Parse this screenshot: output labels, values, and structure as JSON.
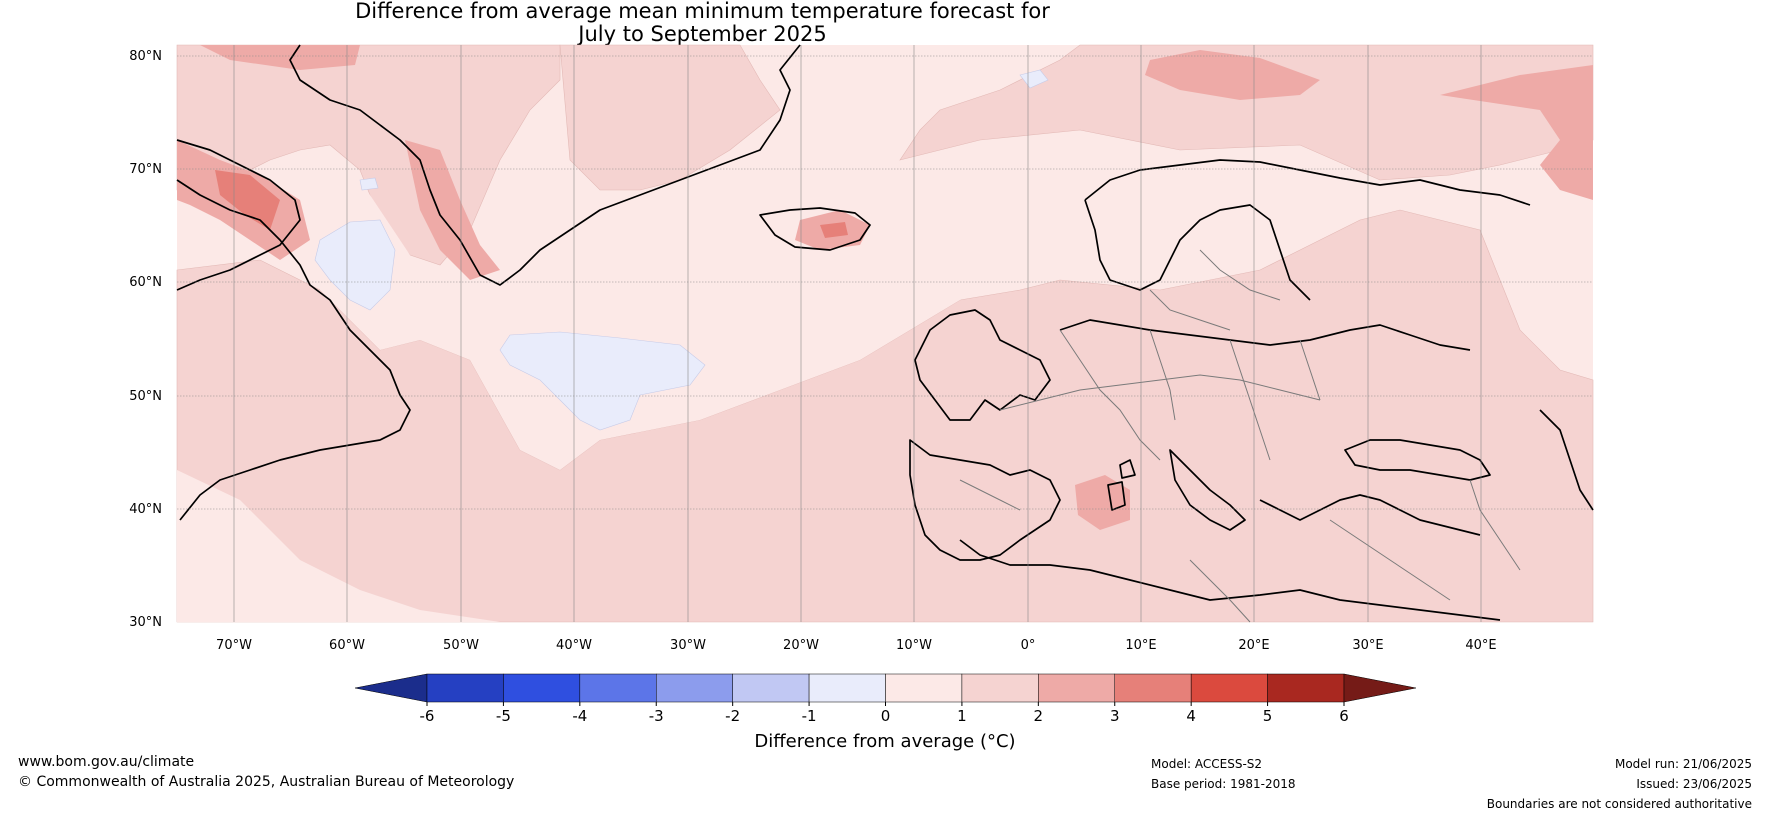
{
  "title": {
    "line1": "Difference from average mean minimum temperature forecast for",
    "line2": "July to September 2025"
  },
  "map": {
    "lat_labels": [
      "80°N",
      "70°N",
      "60°N",
      "50°N",
      "40°N",
      "30°N"
    ],
    "lon_labels": [
      "70°W",
      "60°W",
      "50°W",
      "40°W",
      "30°W",
      "20°W",
      "10°W",
      "0°",
      "10°E",
      "20°E",
      "30°E",
      "40°E"
    ]
  },
  "colorbar": {
    "label": "Difference from average (°C)",
    "ticks": [
      "-6",
      "-5",
      "-4",
      "-3",
      "-2",
      "-1",
      "0",
      "1",
      "2",
      "3",
      "4",
      "5",
      "6"
    ],
    "colors": [
      "#1b2d8c",
      "#2540c2",
      "#2f4fe0",
      "#5c75e8",
      "#8c9ced",
      "#c1c8f3",
      "#e9ecfb",
      "#fce9e7",
      "#f5d3d1",
      "#eeaaa7",
      "#e68079",
      "#db4a3e",
      "#a92820",
      "#751b17"
    ]
  },
  "footer": {
    "website": "www.bom.gov.au/climate",
    "copyright": "© Commonwealth of Australia 2025, Australian Bureau of Meteorology",
    "model": "Model: ACCESS-S2",
    "base_period": "Base period: 1981-2018",
    "model_run": "Model run: 21/06/2025",
    "issued": "Issued: 23/06/2025",
    "disclaimer": "Boundaries are not considered authoritative"
  }
}
